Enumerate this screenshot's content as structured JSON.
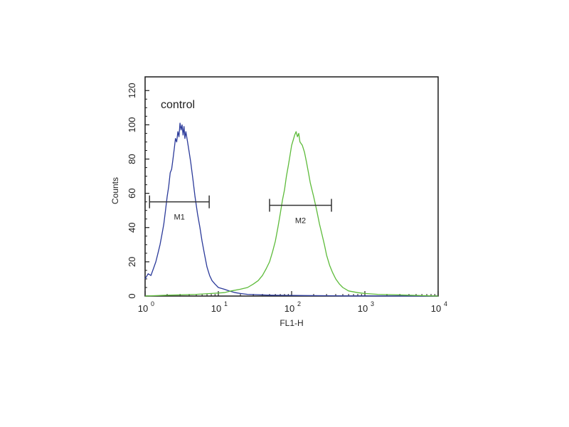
{
  "chart_data": {
    "type": "line",
    "x_scale": "log",
    "xlim": [
      1,
      10000
    ],
    "ylim": [
      0,
      128
    ],
    "x_ticks": [
      {
        "base": "10",
        "exp": "0",
        "value": 1
      },
      {
        "base": "10",
        "exp": "1",
        "value": 10
      },
      {
        "base": "10",
        "exp": "2",
        "value": 100
      },
      {
        "base": "10",
        "exp": "3",
        "value": 1000
      },
      {
        "base": "10",
        "exp": "4",
        "value": 10000
      }
    ],
    "y_ticks": [
      "0",
      "20",
      "40",
      "60",
      "80",
      "100",
      "120"
    ],
    "y_tick_values": [
      0,
      20,
      40,
      60,
      80,
      100,
      120
    ],
    "xlabel": "FL1-H",
    "ylabel": "Counts",
    "annotation": "control",
    "grid": false,
    "series": [
      {
        "color": "#2b3a9a",
        "points": [
          [
            1.0,
            10
          ],
          [
            1.1,
            13
          ],
          [
            1.2,
            12
          ],
          [
            1.3,
            16
          ],
          [
            1.4,
            20
          ],
          [
            1.5,
            25
          ],
          [
            1.6,
            30
          ],
          [
            1.7,
            36
          ],
          [
            1.8,
            42
          ],
          [
            1.9,
            50
          ],
          [
            2.0,
            58
          ],
          [
            2.1,
            64
          ],
          [
            2.2,
            72
          ],
          [
            2.3,
            74
          ],
          [
            2.4,
            80
          ],
          [
            2.5,
            86
          ],
          [
            2.6,
            92
          ],
          [
            2.7,
            90
          ],
          [
            2.8,
            96
          ],
          [
            2.9,
            93
          ],
          [
            3.0,
            101
          ],
          [
            3.1,
            97
          ],
          [
            3.2,
            100
          ],
          [
            3.3,
            94
          ],
          [
            3.4,
            99
          ],
          [
            3.5,
            92
          ],
          [
            3.6,
            96
          ],
          [
            3.8,
            90
          ],
          [
            4.0,
            84
          ],
          [
            4.2,
            78
          ],
          [
            4.5,
            68
          ],
          [
            4.8,
            58
          ],
          [
            5.2,
            48
          ],
          [
            5.6,
            40
          ],
          [
            6.0,
            32
          ],
          [
            6.5,
            24
          ],
          [
            7.0,
            17
          ],
          [
            7.6,
            12
          ],
          [
            8.2,
            9
          ],
          [
            9.0,
            7
          ],
          [
            10,
            5
          ],
          [
            12,
            4
          ],
          [
            14,
            3
          ],
          [
            17,
            2
          ],
          [
            20,
            1.5
          ],
          [
            25,
            1
          ],
          [
            35,
            0.8
          ],
          [
            50,
            0.5
          ],
          [
            80,
            0.4
          ],
          [
            150,
            0.3
          ],
          [
            300,
            0.2
          ],
          [
            600,
            0.1
          ],
          [
            1000,
            0.1
          ],
          [
            10000,
            0
          ]
        ]
      },
      {
        "color": "#5dbb3a",
        "points": [
          [
            1.0,
            0
          ],
          [
            2,
            0.5
          ],
          [
            5,
            1
          ],
          [
            8,
            1.5
          ],
          [
            12,
            2
          ],
          [
            15,
            3
          ],
          [
            20,
            4
          ],
          [
            25,
            5
          ],
          [
            30,
            7
          ],
          [
            35,
            9
          ],
          [
            40,
            12
          ],
          [
            45,
            16
          ],
          [
            50,
            20
          ],
          [
            55,
            26
          ],
          [
            60,
            32
          ],
          [
            65,
            40
          ],
          [
            70,
            48
          ],
          [
            75,
            56
          ],
          [
            80,
            62
          ],
          [
            85,
            70
          ],
          [
            90,
            76
          ],
          [
            95,
            82
          ],
          [
            100,
            88
          ],
          [
            105,
            91
          ],
          [
            110,
            94
          ],
          [
            115,
            96
          ],
          [
            120,
            93
          ],
          [
            125,
            95
          ],
          [
            130,
            90
          ],
          [
            140,
            88
          ],
          [
            150,
            84
          ],
          [
            160,
            78
          ],
          [
            170,
            72
          ],
          [
            180,
            66
          ],
          [
            200,
            58
          ],
          [
            220,
            50
          ],
          [
            240,
            42
          ],
          [
            260,
            36
          ],
          [
            280,
            30
          ],
          [
            300,
            24
          ],
          [
            330,
            18
          ],
          [
            360,
            14
          ],
          [
            400,
            10
          ],
          [
            450,
            7
          ],
          [
            500,
            5
          ],
          [
            600,
            3
          ],
          [
            800,
            2
          ],
          [
            1000,
            1.5
          ],
          [
            1500,
            1
          ],
          [
            2500,
            0.8
          ],
          [
            4000,
            0.5
          ],
          [
            10000,
            0
          ]
        ]
      }
    ],
    "markers": [
      {
        "label": "M1",
        "x_start": 1.15,
        "x_end": 7.5,
        "y": 55
      },
      {
        "label": "M2",
        "x_start": 50,
        "x_end": 350,
        "y": 53
      }
    ]
  }
}
